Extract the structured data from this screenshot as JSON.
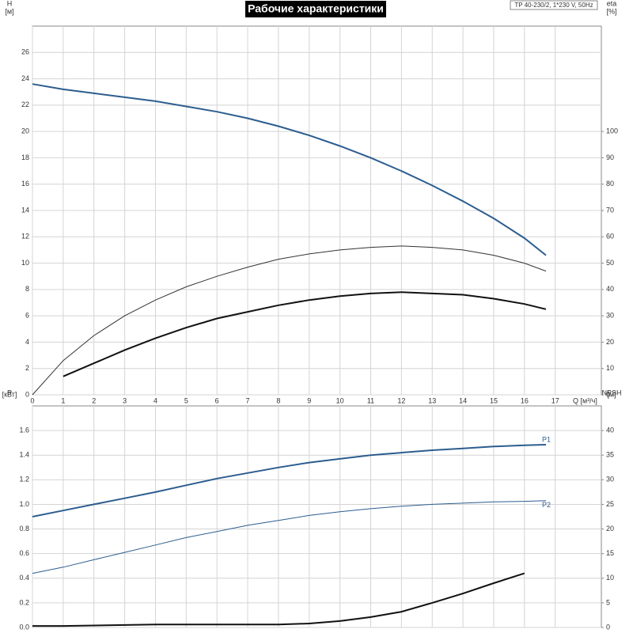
{
  "title": "Рабочие характеристики",
  "model": "TP 40-230/2, 1*230 V, 50Hz",
  "chart_data": [
    {
      "type": "line",
      "ylabel": "H",
      "yunit": "[м]",
      "y2label": "eta",
      "y2unit": "[%]",
      "xlabel": "Q [м³/ч]",
      "x": [
        0,
        1,
        2,
        3,
        4,
        5,
        6,
        7,
        8,
        9,
        10,
        11,
        12,
        13,
        14,
        15,
        16,
        16.7
      ],
      "xlim": [
        0,
        18.5
      ],
      "xticks": [
        0,
        1,
        2,
        3,
        4,
        5,
        6,
        7,
        8,
        9,
        10,
        11,
        12,
        13,
        14,
        15,
        16,
        17
      ],
      "ylim": [
        0,
        28
      ],
      "yticks": [
        0,
        2,
        4,
        6,
        8,
        10,
        12,
        14,
        16,
        18,
        20,
        22,
        24,
        26
      ],
      "y2lim": [
        0,
        140
      ],
      "y2ticks": [
        0,
        10,
        20,
        30,
        40,
        50,
        60,
        70,
        80,
        90,
        100
      ],
      "grid": true,
      "series": [
        {
          "color": "#2c5d8f",
          "line_width": 2,
          "values": [
            23.6,
            23.2,
            22.9,
            22.6,
            22.3,
            21.9,
            21.5,
            21.0,
            20.4,
            19.7,
            18.9,
            18.0,
            17.0,
            15.9,
            14.7,
            13.4,
            11.9,
            10.6
          ]
        },
        {
          "color": "#333333",
          "line_width": 1,
          "axis": "y2",
          "values": [
            0,
            13,
            22.5,
            30,
            36,
            41,
            45,
            48.5,
            51.5,
            53.5,
            55,
            56,
            56.5,
            56,
            55,
            53,
            50,
            47
          ]
        },
        {
          "color": "#111111",
          "line_width": 2,
          "axis": "y2",
          "values": [
            null,
            7,
            12,
            17,
            21.5,
            25.5,
            29,
            31.5,
            34,
            36,
            37.5,
            38.5,
            39,
            38.5,
            38,
            36.5,
            34.5,
            32.5
          ]
        }
      ]
    },
    {
      "type": "line",
      "ylabel": "P",
      "yunit": "[кВт]",
      "y2label": "NPSH",
      "y2unit": "[м]",
      "x": [
        0,
        1,
        2,
        3,
        4,
        5,
        6,
        7,
        8,
        9,
        10,
        11,
        12,
        13,
        14,
        15,
        16,
        16.7
      ],
      "xlim": [
        0,
        18.5
      ],
      "ylim": [
        0,
        1.8
      ],
      "yticks": [
        {
          "value": 0,
          "label": "0.0"
        },
        0.2,
        0.4,
        0.6,
        0.8,
        {
          "value": 1,
          "label": "1.0"
        },
        1.2,
        1.4,
        1.6
      ],
      "y2lim": [
        0,
        45
      ],
      "y2ticks": [
        0,
        5,
        10,
        15,
        20,
        25,
        30,
        35,
        40
      ],
      "grid": true,
      "series": [
        {
          "name": "P1",
          "color": "#2c5d8f",
          "line_width": 2,
          "values": [
            0.9,
            0.95,
            1.0,
            1.05,
            1.1,
            1.155,
            1.21,
            1.255,
            1.3,
            1.34,
            1.37,
            1.4,
            1.42,
            1.44,
            1.455,
            1.47,
            1.48,
            1.485
          ]
        },
        {
          "name": "P2",
          "color": "#2c5d8f",
          "line_width": 1,
          "values": [
            0.44,
            0.49,
            0.55,
            0.61,
            0.67,
            0.73,
            0.78,
            0.83,
            0.87,
            0.91,
            0.94,
            0.965,
            0.985,
            1.0,
            1.01,
            1.02,
            1.025,
            1.03
          ]
        },
        {
          "color": "#111111",
          "line_width": 2,
          "axis": "y2",
          "values": [
            0.3,
            0.3,
            0.4,
            0.5,
            0.6,
            0.6,
            0.6,
            0.6,
            0.6,
            0.8,
            1.3,
            2.1,
            3.2,
            5.0,
            6.9,
            9.0,
            11.0,
            null
          ]
        }
      ]
    }
  ]
}
